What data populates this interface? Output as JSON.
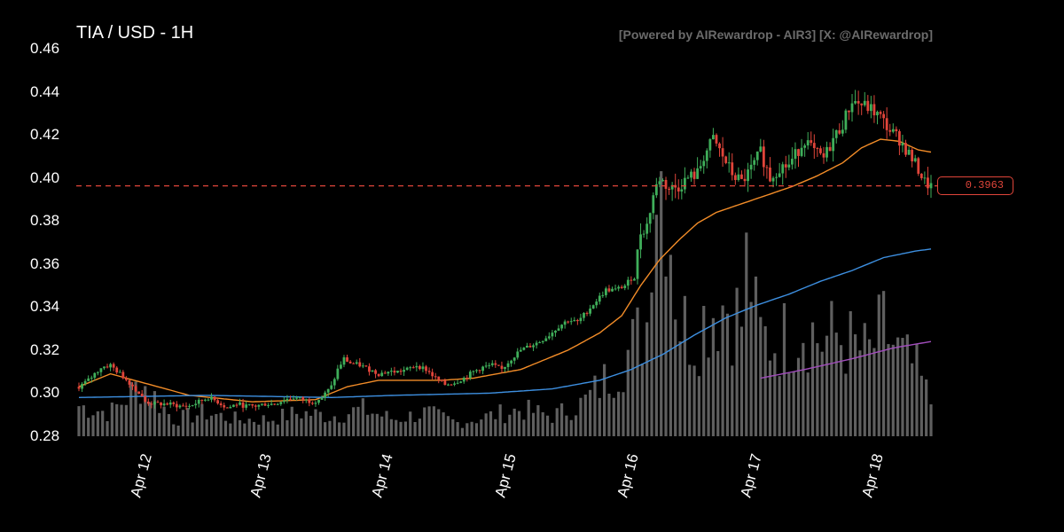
{
  "title": "TIA / USD - 1H",
  "credit": "[Powered by AIRewardrop - AIR3] [X: @AIRewardrop]",
  "chart_data": {
    "type": "candlestick",
    "symbol": "TIA / USD",
    "interval": "1H",
    "ylim": [
      0.28,
      0.46
    ],
    "yticks": [
      "0.46",
      "0.44",
      "0.42",
      "0.40",
      "0.38",
      "0.36",
      "0.34",
      "0.32",
      "0.30",
      "0.28"
    ],
    "x_labels": [
      "Apr 12",
      "Apr 13",
      "Apr 14",
      "Apr 15",
      "Apr 16",
      "Apr 17",
      "Apr 18"
    ],
    "current_price": 0.3963,
    "current_price_label": "0.3963",
    "series": [
      {
        "name": "price",
        "color_up": "#3fae5a",
        "color_down": "#e0453a",
        "anchors_close": [
          [
            0,
            0.303
          ],
          [
            3,
            0.306
          ],
          [
            7,
            0.312
          ],
          [
            10,
            0.313
          ],
          [
            13,
            0.309
          ],
          [
            16,
            0.305
          ],
          [
            19,
            0.3
          ],
          [
            21,
            0.296
          ],
          [
            24,
            0.295
          ],
          [
            28,
            0.295
          ],
          [
            32,
            0.294
          ],
          [
            35,
            0.294
          ],
          [
            38,
            0.296
          ],
          [
            41,
            0.298
          ],
          [
            44,
            0.296
          ],
          [
            47,
            0.293
          ],
          [
            50,
            0.295
          ],
          [
            53,
            0.294
          ],
          [
            56,
            0.294
          ],
          [
            59,
            0.295
          ],
          [
            62,
            0.295
          ],
          [
            65,
            0.297
          ],
          [
            68,
            0.298
          ],
          [
            71,
            0.297
          ],
          [
            74,
            0.296
          ],
          [
            77,
            0.298
          ],
          [
            80,
            0.303
          ],
          [
            82,
            0.311
          ],
          [
            84,
            0.316
          ],
          [
            86,
            0.314
          ],
          [
            89,
            0.313
          ],
          [
            92,
            0.311
          ],
          [
            95,
            0.309
          ],
          [
            98,
            0.31
          ],
          [
            101,
            0.31
          ],
          [
            104,
            0.311
          ],
          [
            107,
            0.313
          ],
          [
            110,
            0.311
          ],
          [
            113,
            0.307
          ],
          [
            116,
            0.304
          ],
          [
            119,
            0.305
          ],
          [
            122,
            0.307
          ],
          [
            125,
            0.31
          ],
          [
            128,
            0.312
          ],
          [
            131,
            0.313
          ],
          [
            134,
            0.311
          ],
          [
            137,
            0.316
          ],
          [
            140,
            0.32
          ],
          [
            143,
            0.322
          ],
          [
            146,
            0.324
          ],
          [
            149,
            0.327
          ],
          [
            152,
            0.331
          ],
          [
            155,
            0.334
          ],
          [
            158,
            0.333
          ],
          [
            161,
            0.338
          ],
          [
            164,
            0.343
          ],
          [
            167,
            0.348
          ],
          [
            170,
            0.348
          ],
          [
            173,
            0.35
          ],
          [
            176,
            0.355
          ],
          [
            178,
            0.375
          ],
          [
            180,
            0.378
          ],
          [
            182,
            0.392
          ],
          [
            184,
            0.4
          ],
          [
            187,
            0.395
          ],
          [
            190,
            0.396
          ],
          [
            193,
            0.4
          ],
          [
            196,
            0.402
          ],
          [
            198,
            0.41
          ],
          [
            201,
            0.418
          ],
          [
            204,
            0.41
          ],
          [
            207,
            0.402
          ],
          [
            210,
            0.398
          ],
          [
            213,
            0.404
          ],
          [
            216,
            0.412
          ],
          [
            219,
            0.4
          ],
          [
            222,
            0.405
          ],
          [
            225,
            0.406
          ],
          [
            228,
            0.413
          ],
          [
            230,
            0.418
          ],
          [
            233,
            0.412
          ],
          [
            236,
            0.409
          ],
          [
            239,
            0.418
          ],
          [
            242,
            0.425
          ],
          [
            245,
            0.436
          ],
          [
            248,
            0.434
          ],
          [
            251,
            0.432
          ],
          [
            254,
            0.428
          ],
          [
            257,
            0.422
          ],
          [
            260,
            0.418
          ],
          [
            263,
            0.411
          ],
          [
            266,
            0.404
          ],
          [
            268,
            0.398
          ],
          [
            270,
            0.396
          ]
        ]
      },
      {
        "name": "EMA short",
        "color": "#f28c28",
        "points": [
          [
            0,
            0.303
          ],
          [
            10,
            0.309
          ],
          [
            20,
            0.305
          ],
          [
            35,
            0.299
          ],
          [
            55,
            0.296
          ],
          [
            75,
            0.297
          ],
          [
            85,
            0.303
          ],
          [
            95,
            0.306
          ],
          [
            115,
            0.306
          ],
          [
            125,
            0.307
          ],
          [
            140,
            0.311
          ],
          [
            155,
            0.32
          ],
          [
            165,
            0.328
          ],
          [
            172,
            0.336
          ],
          [
            178,
            0.35
          ],
          [
            184,
            0.362
          ],
          [
            190,
            0.371
          ],
          [
            196,
            0.379
          ],
          [
            202,
            0.384
          ],
          [
            210,
            0.388
          ],
          [
            218,
            0.392
          ],
          [
            226,
            0.396
          ],
          [
            234,
            0.401
          ],
          [
            242,
            0.407
          ],
          [
            248,
            0.414
          ],
          [
            254,
            0.418
          ],
          [
            260,
            0.417
          ],
          [
            266,
            0.413
          ],
          [
            270,
            0.412
          ]
        ]
      },
      {
        "name": "MA long",
        "color": "#3d8fe0",
        "points": [
          [
            0,
            0.298
          ],
          [
            40,
            0.299
          ],
          [
            80,
            0.298
          ],
          [
            100,
            0.299
          ],
          [
            130,
            0.3
          ],
          [
            150,
            0.302
          ],
          [
            165,
            0.306
          ],
          [
            175,
            0.311
          ],
          [
            185,
            0.318
          ],
          [
            195,
            0.327
          ],
          [
            205,
            0.335
          ],
          [
            215,
            0.341
          ],
          [
            225,
            0.346
          ],
          [
            235,
            0.352
          ],
          [
            245,
            0.357
          ],
          [
            255,
            0.363
          ],
          [
            265,
            0.366
          ],
          [
            270,
            0.367
          ]
        ]
      },
      {
        "name": "MA extended",
        "color": "#a24dbd",
        "points": [
          [
            216,
            0.307
          ],
          [
            230,
            0.311
          ],
          [
            245,
            0.316
          ],
          [
            258,
            0.321
          ],
          [
            270,
            0.324
          ]
        ]
      }
    ],
    "volume_anchors": [
      [
        0,
        0.09
      ],
      [
        10,
        0.07
      ],
      [
        20,
        0.16
      ],
      [
        30,
        0.05
      ],
      [
        40,
        0.07
      ],
      [
        50,
        0.05
      ],
      [
        60,
        0.05
      ],
      [
        70,
        0.07
      ],
      [
        80,
        0.06
      ],
      [
        90,
        0.08
      ],
      [
        100,
        0.05
      ],
      [
        110,
        0.07
      ],
      [
        120,
        0.04
      ],
      [
        130,
        0.06
      ],
      [
        140,
        0.08
      ],
      [
        150,
        0.06
      ],
      [
        160,
        0.1
      ],
      [
        170,
        0.2
      ],
      [
        175,
        0.26
      ],
      [
        180,
        0.34
      ],
      [
        182,
        0.84
      ],
      [
        184,
        0.8
      ],
      [
        186,
        0.78
      ],
      [
        190,
        0.35
      ],
      [
        195,
        0.3
      ],
      [
        200,
        0.38
      ],
      [
        205,
        0.4
      ],
      [
        210,
        0.34
      ],
      [
        212,
        0.55
      ],
      [
        215,
        0.3
      ],
      [
        220,
        0.28
      ],
      [
        225,
        0.3
      ],
      [
        230,
        0.34
      ],
      [
        235,
        0.28
      ],
      [
        240,
        0.3
      ],
      [
        245,
        0.27
      ],
      [
        250,
        0.24
      ],
      [
        255,
        0.32
      ],
      [
        260,
        0.24
      ],
      [
        265,
        0.2
      ],
      [
        270,
        0.1
      ]
    ]
  }
}
